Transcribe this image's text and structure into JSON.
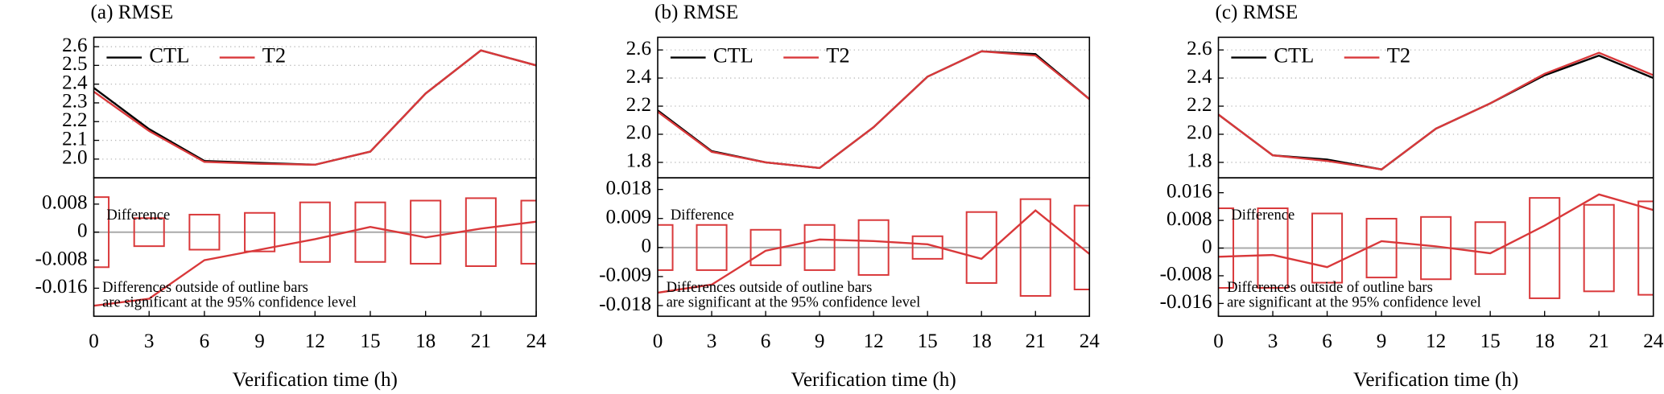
{
  "chart_data": [
    {
      "type": "line",
      "title": "(a) RMSE",
      "x": [
        0,
        3,
        6,
        9,
        12,
        15,
        18,
        21,
        24
      ],
      "xlim": [
        0,
        24
      ],
      "ylim": [
        1.9,
        2.65
      ],
      "yticks": [
        {
          "value": 2,
          "label": "2.0"
        },
        2.1,
        2.2,
        2.3,
        2.4,
        2.5,
        2.6
      ],
      "grid": true,
      "legend": "upper left",
      "series": [
        {
          "name": "CTL",
          "color": "#000000",
          "values": [
            2.38,
            2.16,
            1.99,
            1.98,
            1.97,
            2.04,
            2.35,
            2.58,
            2.5
          ]
        },
        {
          "name": "T2",
          "color": "#d9383a",
          "values": [
            2.36,
            2.15,
            1.985,
            1.975,
            1.97,
            2.04,
            2.35,
            2.58,
            2.5
          ]
        }
      ]
    },
    {
      "type": "line",
      "x": [
        0,
        3,
        6,
        9,
        12,
        15,
        18,
        21,
        24
      ],
      "xlim": [
        0,
        24
      ],
      "xticks": [
        0,
        3,
        6,
        9,
        12,
        15,
        18,
        21,
        24
      ],
      "xlabel": "Verification time (h)",
      "ylim": [
        -0.024,
        0.0155
      ],
      "yticks": [
        0.008,
        0,
        -0.008,
        -0.016
      ],
      "annotations": [
        "Difference",
        "Differences outside of outline bars",
        "are significant at the 95% confidence level"
      ],
      "series": [
        {
          "color": "#d9383a",
          "values": [
            -0.021,
            -0.019,
            -0.008,
            -0.005,
            -0.002,
            0.0015,
            -0.0015,
            0.001,
            0.003
          ]
        }
      ],
      "bar_color": "#d9383a",
      "bar_halfwidths": [
        0.01,
        0.004,
        0.005,
        0.0055,
        0.0085,
        0.0085,
        0.009,
        0.0097,
        0.009
      ]
    },
    {
      "type": "line",
      "title": "(b) RMSE",
      "x": [
        0,
        3,
        6,
        9,
        12,
        15,
        18,
        21,
        24
      ],
      "xlim": [
        0,
        24
      ],
      "ylim": [
        1.69,
        2.69
      ],
      "yticks": [
        1.8,
        {
          "value": 2,
          "label": "2.0"
        },
        2.2,
        2.4,
        2.6
      ],
      "grid": true,
      "legend": "upper left",
      "series": [
        {
          "name": "CTL",
          "color": "#000000",
          "values": [
            2.17,
            1.88,
            1.8,
            1.76,
            2.05,
            2.41,
            2.59,
            2.57,
            2.25
          ]
        },
        {
          "name": "T2",
          "color": "#d9383a",
          "values": [
            2.16,
            1.875,
            1.8,
            1.76,
            2.05,
            2.41,
            2.59,
            2.56,
            2.25
          ]
        }
      ]
    },
    {
      "type": "line",
      "x": [
        0,
        3,
        6,
        9,
        12,
        15,
        18,
        21,
        24
      ],
      "xlim": [
        0,
        24
      ],
      "xticks": [
        0,
        3,
        6,
        9,
        12,
        15,
        18,
        21,
        24
      ],
      "xlabel": "Verification time (h)",
      "ylim": [
        -0.0213,
        0.0216
      ],
      "yticks": [
        0.018,
        0.009,
        0,
        -0.009,
        -0.018
      ],
      "annotations": [
        "Difference",
        "Differences outside of outline bars",
        "are significant at the 95% confidence level"
      ],
      "series": [
        {
          "color": "#d9383a",
          "values": [
            -0.014,
            -0.0115,
            -0.001,
            0.0025,
            0.002,
            0.001,
            -0.0035,
            0.0115,
            -0.002
          ]
        }
      ],
      "bar_color": "#d9383a",
      "bar_halfwidths": [
        0.007,
        0.007,
        0.0055,
        0.007,
        0.0085,
        0.0035,
        0.011,
        0.015,
        0.013
      ]
    },
    {
      "type": "line",
      "title": "(c) RMSE",
      "x": [
        0,
        3,
        6,
        9,
        12,
        15,
        18,
        21,
        24
      ],
      "xlim": [
        0,
        24
      ],
      "ylim": [
        1.69,
        2.69
      ],
      "yticks": [
        1.8,
        {
          "value": 2,
          "label": "2.0"
        },
        2.2,
        2.4,
        2.6
      ],
      "grid": true,
      "legend": "upper left",
      "series": [
        {
          "name": "CTL",
          "color": "#000000",
          "values": [
            2.14,
            1.85,
            1.82,
            1.75,
            2.04,
            2.22,
            2.42,
            2.56,
            2.4
          ]
        },
        {
          "name": "T2",
          "color": "#d9383a",
          "values": [
            2.14,
            1.85,
            1.81,
            1.75,
            2.04,
            2.22,
            2.43,
            2.58,
            2.42
          ]
        }
      ]
    },
    {
      "type": "line",
      "x": [
        0,
        3,
        6,
        9,
        12,
        15,
        18,
        21,
        24
      ],
      "xlim": [
        0,
        24
      ],
      "xticks": [
        0,
        3,
        6,
        9,
        12,
        15,
        18,
        21,
        24
      ],
      "xlabel": "Verification time (h)",
      "ylim": [
        -0.0197,
        0.0203
      ],
      "yticks": [
        0.016,
        0.008,
        0,
        -0.008,
        -0.016
      ],
      "annotations": [
        "Difference",
        "Differences outside of outline bars",
        "are significant at the 95% confidence level"
      ],
      "series": [
        {
          "color": "#d9383a",
          "values": [
            -0.0025,
            -0.002,
            -0.0055,
            0.002,
            0.0005,
            -0.0015,
            0.0065,
            0.0155,
            0.011
          ]
        }
      ],
      "bar_color": "#d9383a",
      "bar_halfwidths": [
        0.0115,
        0.0115,
        0.01,
        0.0085,
        0.009,
        0.0075,
        0.0145,
        0.0125,
        0.0135
      ]
    }
  ]
}
